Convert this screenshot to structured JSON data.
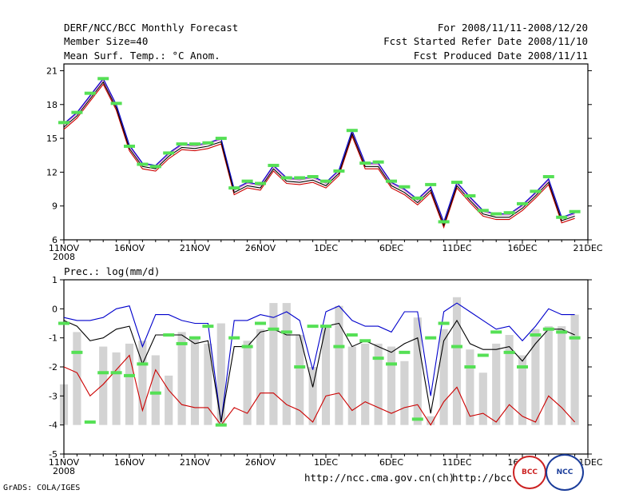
{
  "header": {
    "title": "DERF/NCC/BCC Monthly Forecast",
    "member_size": "Member Size=40",
    "variable": "Mean Surf. Temp.: °C Anom.",
    "period": "For 2008/11/11-2008/12/20",
    "start": "Fcst Started Refer Date 2008/11/10",
    "produced": "Fcst Produced Date 2008/11/11"
  },
  "panel2_title": "Prec.: log(mm/d)",
  "footer": {
    "grads": "GrADS: COLA/IGES",
    "url1": "http://ncc.cma.gov.cn(ch)",
    "url2": "http://bcc.cma.gov.cn(en)",
    "logo_bcc": "BCC",
    "logo_ncc": "NCC"
  },
  "colors": {
    "obs": "#55e055",
    "upper": "#0000cc",
    "mean": "#000000",
    "lower": "#cc0000",
    "bar": "#d3d3d3",
    "extra": "#cc66cc"
  },
  "chart_data": [
    {
      "type": "line",
      "title": "Mean Surf. Temp.: °C Anom.",
      "x": [
        1,
        2,
        3,
        4,
        5,
        6,
        7,
        8,
        9,
        10,
        11,
        12,
        13,
        14,
        15,
        16,
        17,
        18,
        19,
        20,
        21,
        22,
        23,
        24,
        25,
        26,
        27,
        28,
        29,
        30,
        31,
        32,
        33,
        34,
        35,
        36,
        37,
        38,
        39,
        40
      ],
      "xticks": [
        1,
        6,
        11,
        16,
        21,
        26,
        31,
        36,
        41
      ],
      "xticklabels": [
        "11NOV",
        "16NOV",
        "21NOV",
        "26NOV",
        "1DEC",
        "6DEC",
        "11DEC",
        "16DEC",
        "21DEC"
      ],
      "xlabel_sub": "2008",
      "ylim": [
        6,
        21.6
      ],
      "yticks": [
        6,
        9,
        12,
        15,
        18,
        21
      ],
      "series": [
        {
          "name": "upper",
          "values": [
            16.3,
            17.3,
            18.8,
            20.3,
            18.0,
            14.4,
            12.8,
            12.6,
            13.7,
            14.5,
            14.4,
            14.6,
            15.0,
            10.5,
            11.1,
            10.9,
            12.6,
            11.5,
            11.4,
            11.6,
            11.1,
            12.2,
            15.7,
            12.8,
            12.8,
            11.1,
            10.5,
            9.6,
            10.7,
            7.6,
            11.1,
            9.8,
            8.6,
            8.3,
            8.3,
            9.1,
            10.2,
            11.4,
            8.0,
            8.4
          ]
        },
        {
          "name": "extra",
          "values": [
            16.2,
            17.2,
            18.7,
            20.2,
            17.9,
            14.3,
            12.7,
            12.5,
            13.6,
            14.4,
            14.3,
            14.5,
            14.9,
            10.4,
            11.0,
            10.8,
            12.5,
            11.4,
            11.3,
            11.5,
            11.0,
            12.1,
            15.6,
            12.7,
            12.7,
            11.0,
            10.4,
            9.5,
            10.6,
            7.5,
            11.0,
            9.7,
            8.5,
            8.2,
            8.2,
            9.0,
            10.1,
            11.3,
            7.9,
            8.3
          ]
        },
        {
          "name": "mean",
          "values": [
            16.0,
            17.0,
            18.5,
            20.0,
            17.7,
            14.1,
            12.5,
            12.3,
            13.4,
            14.2,
            14.1,
            14.3,
            14.7,
            10.2,
            10.8,
            10.6,
            12.3,
            11.2,
            11.1,
            11.3,
            10.8,
            11.9,
            15.4,
            12.5,
            12.5,
            10.8,
            10.2,
            9.3,
            10.4,
            7.3,
            10.8,
            9.5,
            8.3,
            8.0,
            8.0,
            8.8,
            9.9,
            11.1,
            7.7,
            8.1
          ]
        },
        {
          "name": "lower",
          "values": [
            15.8,
            16.8,
            18.3,
            19.8,
            17.5,
            13.9,
            12.3,
            12.1,
            13.2,
            14.0,
            13.9,
            14.1,
            14.5,
            10.0,
            10.6,
            10.4,
            12.1,
            11.0,
            10.9,
            11.1,
            10.6,
            11.7,
            15.2,
            12.3,
            12.3,
            10.6,
            10.0,
            9.1,
            10.2,
            7.1,
            10.6,
            9.3,
            8.1,
            7.8,
            7.8,
            8.6,
            9.7,
            10.9,
            7.5,
            7.9
          ]
        },
        {
          "name": "obs",
          "values": [
            16.4,
            17.3,
            19.0,
            20.3,
            18.1,
            14.3,
            12.7,
            12.5,
            13.7,
            14.5,
            14.5,
            14.6,
            15.0,
            10.6,
            11.2,
            11.0,
            12.6,
            11.5,
            11.5,
            11.6,
            11.2,
            12.1,
            15.7,
            12.8,
            12.9,
            11.2,
            10.7,
            9.7,
            10.9,
            7.6,
            11.1,
            9.9,
            8.6,
            8.3,
            8.4,
            9.2,
            10.3,
            11.6,
            8.0,
            8.5
          ]
        }
      ]
    },
    {
      "type": "bar",
      "title": "Prec.: log(mm/d)",
      "x": [
        1,
        2,
        3,
        4,
        5,
        6,
        7,
        8,
        9,
        10,
        11,
        12,
        13,
        14,
        15,
        16,
        17,
        18,
        19,
        20,
        21,
        22,
        23,
        24,
        25,
        26,
        27,
        28,
        29,
        30,
        31,
        32,
        33,
        34,
        35,
        36,
        37,
        38,
        39,
        40
      ],
      "xticks": [
        1,
        6,
        11,
        16,
        21,
        26,
        31,
        36,
        41
      ],
      "xticklabels": [
        "11NOV",
        "16NOV",
        "21NOV",
        "26NOV",
        "1DEC",
        "6DEC",
        "11DEC",
        "16DEC",
        "21DEC"
      ],
      "xlabel_sub": "2008",
      "ylim": [
        -5,
        1
      ],
      "yticks": [
        -5,
        -4,
        -3,
        -2,
        -1,
        0,
        1
      ],
      "bar_base": -4,
      "bars": [
        -2.6,
        -0.8,
        -4.0,
        -1.3,
        -1.5,
        -1.2,
        -1.1,
        -1.6,
        -2.3,
        -0.8,
        -1.0,
        -1.2,
        -0.5,
        -4.0,
        -1.1,
        -0.7,
        0.2,
        0.2,
        -0.9,
        -2.0,
        -0.6,
        0.1,
        -1.3,
        -1.2,
        -1.2,
        -1.3,
        -1.8,
        -0.3,
        -3.7,
        -0.7,
        0.4,
        -1.4,
        -2.2,
        -1.2,
        -0.9,
        -1.6,
        -0.7,
        -0.6,
        -0.6,
        -0.2
      ],
      "series": [
        {
          "name": "upper",
          "values": [
            -0.3,
            -0.4,
            -0.4,
            -0.3,
            0.0,
            0.1,
            -1.3,
            -0.2,
            -0.2,
            -0.4,
            -0.5,
            -0.5,
            -3.9,
            -0.4,
            -0.4,
            -0.2,
            -0.3,
            -0.1,
            -0.4,
            -2.1,
            -0.1,
            0.1,
            -0.4,
            -0.6,
            -0.6,
            -0.8,
            -0.1,
            -0.1,
            -3.0,
            -0.1,
            0.2,
            -0.1,
            -0.4,
            -0.7,
            -0.6,
            -1.1,
            -0.6,
            0.0,
            -0.2,
            -0.2
          ]
        },
        {
          "name": "mean",
          "values": [
            -0.4,
            -0.6,
            -1.1,
            -1.0,
            -0.7,
            -0.6,
            -1.9,
            -0.9,
            -0.9,
            -0.9,
            -1.2,
            -1.1,
            -3.9,
            -1.3,
            -1.3,
            -0.8,
            -0.7,
            -0.9,
            -0.9,
            -2.7,
            -0.6,
            -0.5,
            -1.3,
            -1.1,
            -1.3,
            -1.5,
            -1.2,
            -1.0,
            -3.6,
            -1.1,
            -0.4,
            -1.2,
            -1.4,
            -1.4,
            -1.3,
            -1.8,
            -1.2,
            -0.7,
            -0.7,
            -0.9
          ]
        },
        {
          "name": "lower",
          "values": [
            -2.0,
            -2.2,
            -3.0,
            -2.6,
            -2.1,
            -1.6,
            -3.5,
            -2.1,
            -2.8,
            -3.3,
            -3.4,
            -3.4,
            -4.0,
            -3.4,
            -3.6,
            -2.9,
            -2.9,
            -3.3,
            -3.5,
            -3.9,
            -3.0,
            -2.9,
            -3.5,
            -3.2,
            -3.4,
            -3.6,
            -3.4,
            -3.3,
            -4.0,
            -3.2,
            -2.7,
            -3.7,
            -3.6,
            -3.9,
            -3.3,
            -3.7,
            -3.9,
            -3.0,
            -3.4,
            -3.9
          ]
        },
        {
          "name": "obs",
          "values": [
            -0.5,
            -1.5,
            -3.9,
            -2.2,
            -2.2,
            -2.3,
            -1.9,
            -2.9,
            -0.9,
            -1.2,
            -1.0,
            -0.6,
            -4.0,
            -1.0,
            -1.3,
            -0.5,
            -0.7,
            -0.8,
            -2.0,
            -0.6,
            -0.6,
            -1.3,
            -0.9,
            -1.1,
            -1.7,
            -1.9,
            -1.5,
            -3.8,
            -1.0,
            -0.5,
            -1.3,
            -2.0,
            -1.6,
            -0.8,
            -1.5,
            -2.0,
            -0.9,
            -0.7,
            -0.8,
            -1.0
          ]
        }
      ]
    }
  ]
}
